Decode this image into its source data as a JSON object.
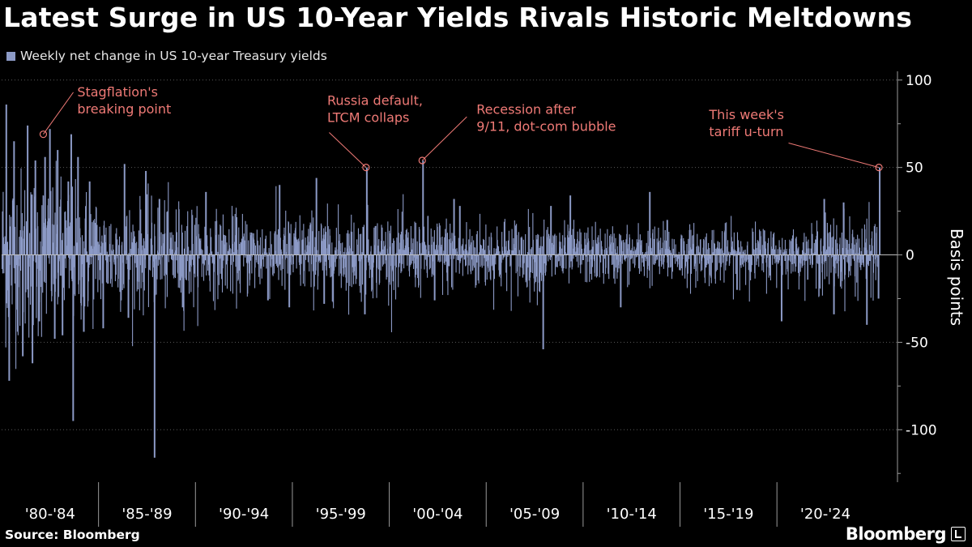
{
  "title": "Latest Surge in US 10-Year Yields Rivals Historic Meltdowns",
  "source": "Source: Bloomberg",
  "brand": "Bloomberg",
  "colors": {
    "bar": "#8c9ac6",
    "annotation": "#ef7a76",
    "axis": "#9a9a9a",
    "background": "#000000"
  },
  "chart_data": {
    "type": "bar",
    "title": "Latest Surge in US 10-Year Yields Rivals Historic Meltdowns",
    "series": [
      {
        "name": "Weekly net change in US 10-year Treasury yields"
      }
    ],
    "xlabel": "",
    "ylabel": "Basis points",
    "ylim": [
      -130,
      105
    ],
    "yticks": [
      100,
      50,
      0,
      -50,
      -100
    ],
    "ytick_labels": [
      "100",
      "50",
      "0",
      "-50",
      "-100"
    ],
    "x_range": [
      1980.0,
      2025.3
    ],
    "period_labels": [
      "'80-'84",
      "'85-'89",
      "'90-'94",
      "'95-'99",
      "'00-'04",
      "'05-'09",
      "'10-'14",
      "'15-'19",
      "'20-'24"
    ],
    "period_starts": [
      1980,
      1985,
      1990,
      1995,
      2000,
      2005,
      2010,
      2015,
      2020
    ],
    "spikes": [
      {
        "x": 1980.2,
        "y": 86
      },
      {
        "x": 1980.35,
        "y": -72
      },
      {
        "x": 1980.6,
        "y": 65
      },
      {
        "x": 1981.05,
        "y": -58
      },
      {
        "x": 1981.3,
        "y": 74
      },
      {
        "x": 1981.55,
        "y": -62
      },
      {
        "x": 1981.7,
        "y": 54
      },
      {
        "x": 1981.9,
        "y": -38
      },
      {
        "x": 1982.2,
        "y": 56
      },
      {
        "x": 1982.45,
        "y": 72
      },
      {
        "x": 1982.7,
        "y": -48
      },
      {
        "x": 1982.85,
        "y": 60
      },
      {
        "x": 1983.1,
        "y": -46
      },
      {
        "x": 1983.4,
        "y": 42
      },
      {
        "x": 1983.55,
        "y": 69
      },
      {
        "x": 1983.65,
        "y": -95
      },
      {
        "x": 1983.9,
        "y": 56
      },
      {
        "x": 1984.2,
        "y": -44
      },
      {
        "x": 1984.5,
        "y": 42
      },
      {
        "x": 1985.2,
        "y": -42
      },
      {
        "x": 1986.3,
        "y": 52
      },
      {
        "x": 1986.5,
        "y": -36
      },
      {
        "x": 1987.4,
        "y": 48
      },
      {
        "x": 1987.85,
        "y": -116
      },
      {
        "x": 1988.1,
        "y": 32
      },
      {
        "x": 1989.3,
        "y": -30
      },
      {
        "x": 1990.5,
        "y": 36
      },
      {
        "x": 1993.7,
        "y": -26
      },
      {
        "x": 1994.3,
        "y": 40
      },
      {
        "x": 1994.8,
        "y": -30
      },
      {
        "x": 1996.2,
        "y": 44
      },
      {
        "x": 1996.6,
        "y": -28
      },
      {
        "x": 1998.7,
        "y": -34
      },
      {
        "x": 1998.8,
        "y": 50
      },
      {
        "x": 2001.7,
        "y": 54
      },
      {
        "x": 2002.3,
        "y": -26
      },
      {
        "x": 2003.3,
        "y": 32
      },
      {
        "x": 2003.6,
        "y": 28
      },
      {
        "x": 2007.9,
        "y": -54
      },
      {
        "x": 2008.3,
        "y": 28
      },
      {
        "x": 2009.3,
        "y": 34
      },
      {
        "x": 2011.9,
        "y": -30
      },
      {
        "x": 2013.4,
        "y": 36
      },
      {
        "x": 2014.3,
        "y": 20
      },
      {
        "x": 2017.9,
        "y": -20
      },
      {
        "x": 2020.2,
        "y": -38
      },
      {
        "x": 2022.4,
        "y": 32
      },
      {
        "x": 2022.9,
        "y": -34
      },
      {
        "x": 2023.4,
        "y": 30
      },
      {
        "x": 2024.6,
        "y": -40
      },
      {
        "x": 2025.2,
        "y": -25
      },
      {
        "x": 2025.26,
        "y": 50
      }
    ],
    "annotations": [
      {
        "lines": [
          "Stagflation's",
          "breaking point"
        ],
        "x": 1982.15,
        "y": 69,
        "anchor": "start",
        "text_x": 1983.9,
        "text_y": 81,
        "via_x": 1983.7,
        "via_y": 93
      },
      {
        "lines": [
          "Russia default,",
          "LTCM collaps"
        ],
        "x": 1998.8,
        "y": 50,
        "anchor": "start",
        "text_x": 1996.8,
        "text_y": 76,
        "via_x": 1996.9,
        "via_y": 70
      },
      {
        "lines": [
          "Recession after",
          "9/11, dot-com bubble"
        ],
        "x": 2001.7,
        "y": 54,
        "anchor": "start",
        "text_x": 2004.5,
        "text_y": 71,
        "via_x": 2004.0,
        "via_y": 79
      },
      {
        "lines": [
          "This week's",
          "tariff u-turn"
        ],
        "x": 2025.26,
        "y": 50,
        "anchor": "start",
        "text_x": 2016.5,
        "text_y": 68,
        "via_x": 2020.6,
        "via_y": 64
      }
    ]
  }
}
